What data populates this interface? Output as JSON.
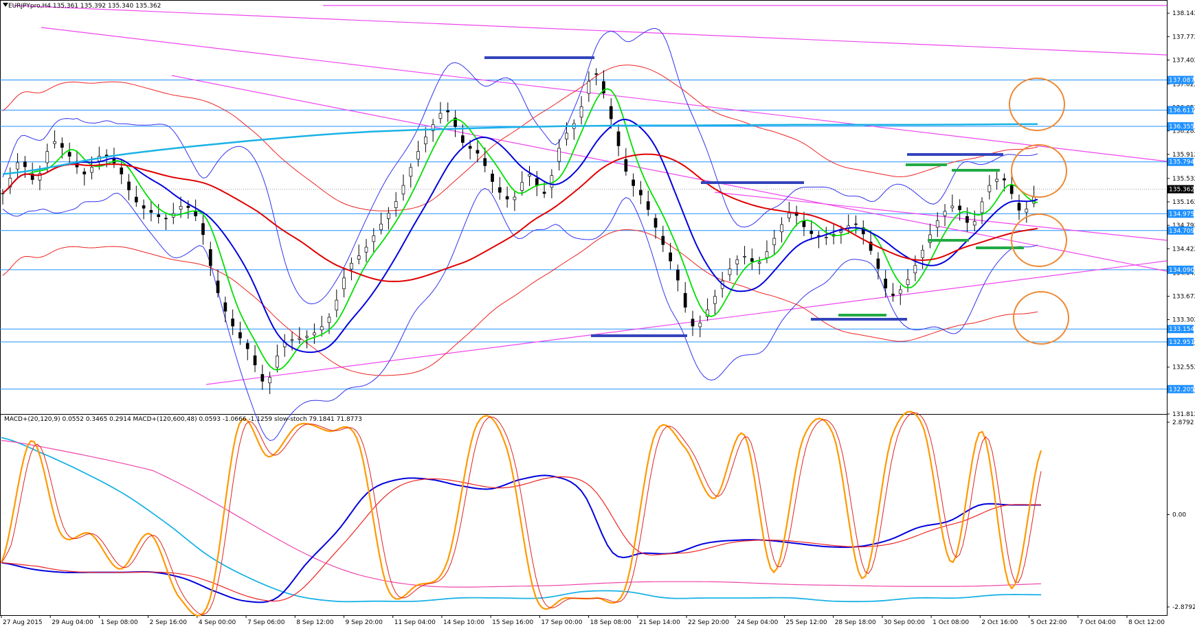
{
  "window": {
    "symbol_caption": "EURJPYpro,H4  135.361 135.392 135.340 135.362",
    "indicator_caption": "MACD+(20,120,9) 0.0552 0.3465 0.2914   MACD+(120,600,48) 0.0593 -1.0666 -1.1259   slow-stoch 79.1841 71.8773"
  },
  "colors": {
    "bull_candle": "#ffffff",
    "bear_candle": "#000000",
    "ma_green": "#00e000",
    "ma_blue": "#0000dd",
    "ma_red": "#e00000",
    "ma_cyan": "#1ab2e6",
    "bollinger": "#3333ee",
    "envelope_red": "#ee2222",
    "trendline": "#ee44ee",
    "level_line": "#1e90ff",
    "marker_blue": "#3344bb",
    "marker_green": "#22aa44",
    "circle": "#ee8833",
    "macd_fast": "#0000dd",
    "macd_fast_signal": "#ee2222",
    "macd_slow": "#1ab2e6",
    "macd_slow_signal": "#ee44aa",
    "stoch_main": "#ff9900",
    "stoch_signal": "#dd2222"
  },
  "chart_data": {
    "type": "line",
    "title": "EURJPYpro,H4",
    "price_axis": {
      "ticks": [
        "138.142",
        "137.772",
        "137.402",
        "137.022",
        "136.652",
        "136.282",
        "135.912",
        "135.532",
        "135.162",
        "134.792",
        "134.422",
        "134.042",
        "133.672",
        "133.302",
        "132.932",
        "132.552",
        "132.182",
        "131.812"
      ],
      "ylim": [
        131.812,
        138.35
      ],
      "current_price": "135.362"
    },
    "level_labels": [
      "137.087",
      "136.611",
      "136.355",
      "135.794",
      "134.975",
      "134.709",
      "134.090",
      "133.154",
      "132.951",
      "132.205"
    ],
    "time_labels": [
      "27 Aug 2015",
      "29 Aug 04:00",
      "1 Sep 08:00",
      "2 Sep 16:00",
      "4 Sep 00:00",
      "7 Sep 06:00",
      "8 Sep 12:00",
      "9 Sep 20:00",
      "11 Sep 04:00",
      "14 Sep 10:00",
      "15 Sep 16:00",
      "17 Sep 00:00",
      "18 Sep 08:00",
      "21 Sep 14:00",
      "22 Sep 20:00",
      "24 Sep 04:00",
      "25 Sep 12:00",
      "28 Sep 18:00",
      "30 Sep 00:00",
      "1 Oct 08:00",
      "2 Oct 16:00",
      "5 Oct 22:00",
      "7 Oct 04:00",
      "8 Oct 12:00"
    ],
    "price_path": [
      135.3,
      135.8,
      135.5,
      136.1,
      135.9,
      135.6,
      135.9,
      135.7,
      135.2,
      135.0,
      134.9,
      135.1,
      134.8,
      133.8,
      133.2,
      132.8,
      132.3,
      132.9,
      133.0,
      133.1,
      133.4,
      134.1,
      134.4,
      134.8,
      135.2,
      135.8,
      136.3,
      136.6,
      136.1,
      135.9,
      135.4,
      135.2,
      135.6,
      135.3,
      136.1,
      136.5,
      137.2,
      136.5,
      135.6,
      135.2,
      134.6,
      134.0,
      133.2,
      133.5,
      134.0,
      134.3,
      134.2,
      134.6,
      135.0,
      134.7,
      134.6,
      134.7,
      134.8,
      134.3,
      133.7,
      133.9,
      134.4,
      134.9,
      135.1,
      134.8,
      135.4,
      135.5,
      135.0,
      135.3
    ],
    "overlays": [
      "MA fast (green)",
      "MA mid (blue)",
      "MA slow (red)",
      "MA long (cyan)",
      "Bollinger bands",
      "Envelope bands"
    ],
    "indicator_axis": {
      "ticks": [
        "2.8792",
        "0.00",
        "-2.8792"
      ],
      "ylim": [
        -2.8792,
        2.8792
      ]
    },
    "stoch_path": [
      -1.5,
      2.3,
      -0.6,
      -0.6,
      -1.7,
      -0.6,
      -2.6,
      -2.7,
      2.8,
      1.8,
      2.8,
      2.6,
      2.3,
      -2.3,
      -2.2,
      -1.5,
      2.8,
      2.1,
      -2.6,
      -2.6,
      -2.6,
      -2.3,
      2.5,
      2.1,
      0.5,
      2.5,
      -1.8,
      2.4,
      2.5,
      -2.0,
      2.5,
      2.8,
      -1.5,
      2.6,
      -2.3,
      2.0
    ],
    "macd_fast_path": [
      -1.5,
      -1.7,
      -1.8,
      -1.8,
      -1.8,
      -1.8,
      -2.0,
      -2.4,
      -2.7,
      -2.6,
      -1.5,
      -0.5,
      0.7,
      1.1,
      1.1,
      0.9,
      0.8,
      1.1,
      1.2,
      0.7,
      -1.2,
      -1.2,
      -1.2,
      -0.9,
      -0.8,
      -0.8,
      -0.9,
      -1.0,
      -1.0,
      -0.8,
      -0.4,
      -0.2,
      0.3,
      0.3,
      0.3
    ],
    "macd_slow_path": [
      2.4,
      1.9,
      1.3,
      0.6,
      -0.3,
      -1.3,
      -2.0,
      -2.5,
      -2.7,
      -2.7,
      -2.7,
      -2.6,
      -2.6,
      -2.6,
      -2.4,
      -2.4,
      -2.6,
      -2.6,
      -2.6,
      -2.6,
      -2.7,
      -2.7,
      -2.6,
      -2.6,
      -2.5,
      -2.5
    ]
  }
}
